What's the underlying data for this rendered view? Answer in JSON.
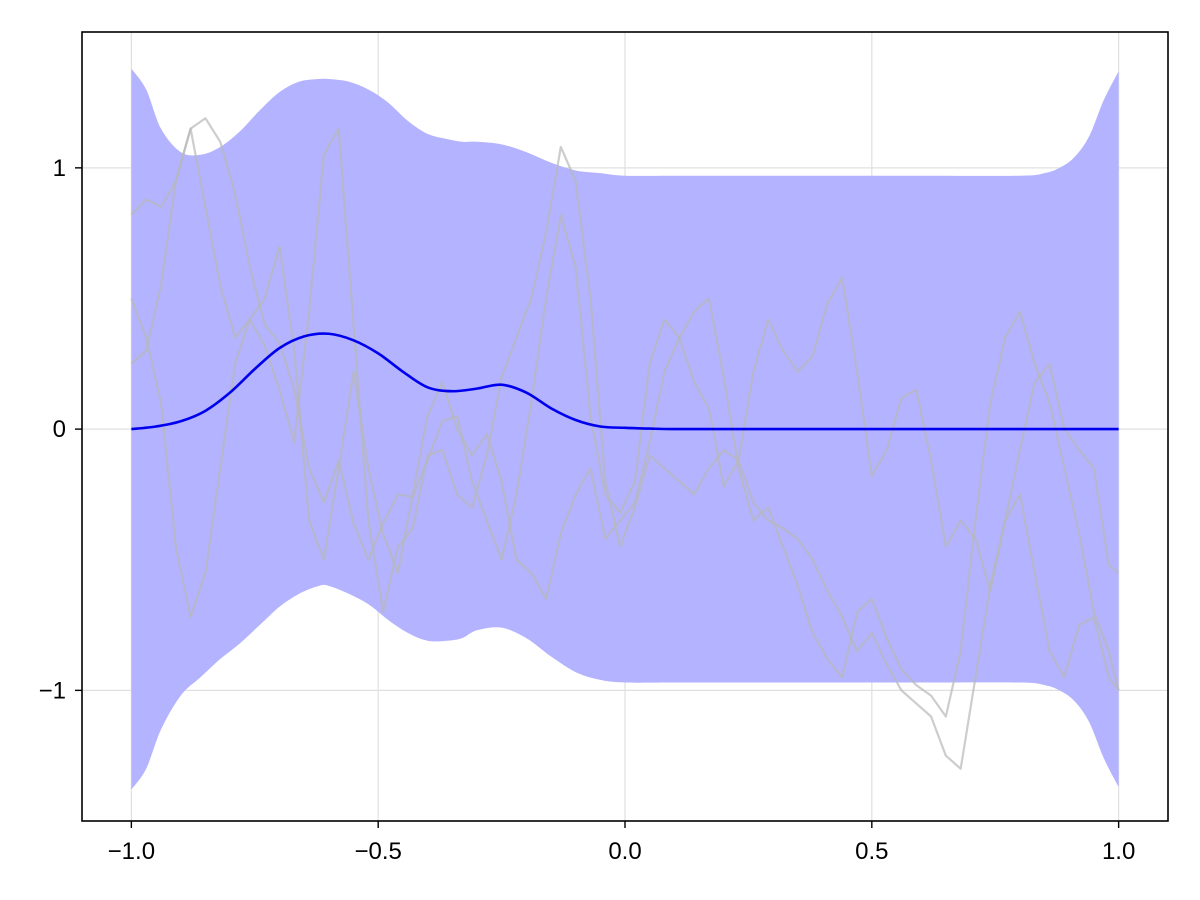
{
  "chart_data": {
    "type": "line",
    "title": "",
    "xlabel": "",
    "ylabel": "",
    "xlim": [
      -1.1,
      1.1
    ],
    "ylim": [
      -1.5,
      1.52
    ],
    "grid": true,
    "x_ticks": [
      {
        "value": -1.0,
        "label": "−1.0"
      },
      {
        "value": -0.5,
        "label": "−0.5"
      },
      {
        "value": 0.0,
        "label": "0.0"
      },
      {
        "value": 0.5,
        "label": "0.5"
      },
      {
        "value": 1.0,
        "label": "1.0"
      }
    ],
    "y_ticks": [
      {
        "value": -1,
        "label": "−1"
      },
      {
        "value": 0,
        "label": "0"
      },
      {
        "value": 1,
        "label": "1"
      }
    ],
    "colors": {
      "band": "#b3b3ff",
      "mean": "#0000ee",
      "samples": "#b8b8b8",
      "grid": "#e0e0e0",
      "frame": "#000000"
    },
    "band": {
      "x": [
        -1.0,
        -0.97,
        -0.94,
        -0.9,
        -0.86,
        -0.82,
        -0.78,
        -0.74,
        -0.7,
        -0.66,
        -0.62,
        -0.6,
        -0.56,
        -0.52,
        -0.48,
        -0.44,
        -0.4,
        -0.36,
        -0.33,
        -0.3,
        -0.25,
        -0.2,
        -0.15,
        -0.1,
        -0.05,
        0.0,
        0.1,
        0.2,
        0.4,
        0.6,
        0.8,
        0.85,
        0.88,
        0.91,
        0.94,
        0.97,
        1.0
      ],
      "upper": [
        1.38,
        1.3,
        1.15,
        1.06,
        1.05,
        1.08,
        1.14,
        1.22,
        1.29,
        1.33,
        1.34,
        1.34,
        1.33,
        1.3,
        1.25,
        1.18,
        1.13,
        1.11,
        1.1,
        1.1,
        1.09,
        1.06,
        1.02,
        0.99,
        0.98,
        0.97,
        0.97,
        0.97,
        0.97,
        0.97,
        0.97,
        0.98,
        1.0,
        1.04,
        1.12,
        1.26,
        1.37
      ],
      "lower": [
        -1.38,
        -1.3,
        -1.15,
        -1.02,
        -0.95,
        -0.88,
        -0.82,
        -0.75,
        -0.68,
        -0.63,
        -0.6,
        -0.6,
        -0.63,
        -0.67,
        -0.73,
        -0.78,
        -0.81,
        -0.81,
        -0.8,
        -0.77,
        -0.76,
        -0.8,
        -0.87,
        -0.93,
        -0.96,
        -0.97,
        -0.97,
        -0.97,
        -0.97,
        -0.97,
        -0.97,
        -0.98,
        -1.0,
        -1.04,
        -1.12,
        -1.26,
        -1.37
      ]
    },
    "mean": {
      "x": [
        -1.0,
        -0.95,
        -0.9,
        -0.85,
        -0.8,
        -0.75,
        -0.7,
        -0.65,
        -0.6,
        -0.55,
        -0.5,
        -0.45,
        -0.4,
        -0.35,
        -0.3,
        -0.25,
        -0.2,
        -0.15,
        -0.1,
        -0.05,
        0.0,
        0.05,
        0.1,
        0.2,
        0.4,
        0.6,
        0.8,
        1.0
      ],
      "y": [
        0.0,
        0.01,
        0.03,
        0.07,
        0.14,
        0.23,
        0.31,
        0.355,
        0.365,
        0.34,
        0.29,
        0.22,
        0.16,
        0.145,
        0.155,
        0.17,
        0.14,
        0.08,
        0.035,
        0.01,
        0.005,
        0.002,
        0.0,
        0.0,
        0.0,
        0.0,
        0.0,
        0.0
      ]
    },
    "samples": [
      {
        "x": [
          -1.0,
          -0.97,
          -0.94,
          -0.91,
          -0.88,
          -0.85,
          -0.82,
          -0.79,
          -0.76,
          -0.73,
          -0.7,
          -0.67,
          -0.64,
          -0.61,
          -0.58,
          -0.55,
          -0.52,
          -0.49,
          -0.46,
          -0.43,
          -0.4,
          -0.37,
          -0.34,
          -0.31,
          -0.28,
          -0.25,
          -0.22,
          -0.19,
          -0.16,
          -0.13,
          -0.1,
          -0.07,
          -0.04,
          -0.01,
          0.02,
          0.05,
          0.08,
          0.11,
          0.14,
          0.17,
          0.2,
          0.23,
          0.26,
          0.29,
          0.32,
          0.35,
          0.38,
          0.41,
          0.44,
          0.47,
          0.5,
          0.53,
          0.56,
          0.59,
          0.62,
          0.65,
          0.68,
          0.71,
          0.74,
          0.77,
          0.8,
          0.83,
          0.86,
          0.89,
          0.92,
          0.95,
          0.98,
          1.0
        ],
        "y": [
          0.82,
          0.88,
          0.85,
          0.95,
          1.15,
          1.19,
          1.1,
          0.9,
          0.62,
          0.4,
          0.33,
          0.15,
          -0.15,
          -0.28,
          -0.12,
          -0.36,
          -0.5,
          -0.36,
          -0.25,
          -0.26,
          -0.12,
          0.03,
          0.05,
          -0.2,
          -0.35,
          -0.5,
          -0.25,
          0.1,
          0.5,
          0.82,
          0.62,
          0.05,
          -0.25,
          -0.32,
          -0.2,
          0.25,
          0.42,
          0.35,
          0.18,
          0.08,
          -0.22,
          -0.12,
          0.22,
          0.42,
          0.3,
          0.22,
          0.28,
          0.48,
          0.58,
          0.22,
          -0.18,
          -0.08,
          0.12,
          0.15,
          -0.12,
          -0.45,
          -0.35,
          -0.42,
          -0.62,
          -0.35,
          -0.08,
          0.18,
          0.25,
          0.0,
          -0.08,
          -0.15,
          -0.52,
          -0.55
        ]
      },
      {
        "x": [
          -1.0,
          -0.97,
          -0.94,
          -0.91,
          -0.88,
          -0.85,
          -0.82,
          -0.79,
          -0.76,
          -0.73,
          -0.7,
          -0.67,
          -0.64,
          -0.61,
          -0.58,
          -0.55,
          -0.52,
          -0.49,
          -0.46,
          -0.43,
          -0.4,
          -0.37,
          -0.34,
          -0.31,
          -0.28,
          -0.25,
          -0.22,
          -0.19,
          -0.16,
          -0.13,
          -0.1,
          -0.07,
          -0.04,
          -0.01,
          0.02,
          0.05,
          0.08,
          0.11,
          0.14,
          0.17,
          0.2,
          0.23,
          0.26,
          0.29,
          0.32,
          0.35,
          0.38,
          0.41,
          0.44,
          0.47,
          0.5,
          0.53,
          0.56,
          0.59,
          0.62,
          0.65,
          0.68,
          0.71,
          0.74,
          0.77,
          0.8,
          0.83,
          0.86,
          0.89,
          0.92,
          0.95,
          0.98,
          1.0
        ],
        "y": [
          0.5,
          0.35,
          0.1,
          -0.45,
          -0.72,
          -0.55,
          -0.15,
          0.25,
          0.42,
          0.5,
          0.7,
          0.3,
          -0.35,
          -0.5,
          -0.15,
          0.22,
          -0.15,
          -0.4,
          -0.55,
          -0.25,
          0.05,
          0.18,
          0.0,
          -0.1,
          -0.02,
          -0.2,
          -0.5,
          -0.55,
          -0.65,
          -0.4,
          -0.25,
          -0.15,
          -0.42,
          -0.35,
          -0.28,
          -0.05,
          0.22,
          0.35,
          0.45,
          0.5,
          0.2,
          -0.15,
          -0.35,
          -0.3,
          -0.45,
          -0.6,
          -0.78,
          -0.88,
          -0.95,
          -0.7,
          -0.65,
          -0.8,
          -0.92,
          -0.98,
          -1.02,
          -1.1,
          -0.85,
          -0.35,
          0.1,
          0.35,
          0.45,
          0.25,
          0.1,
          -0.15,
          -0.4,
          -0.7,
          -0.85,
          -1.0
        ]
      },
      {
        "x": [
          -1.0,
          -0.97,
          -0.94,
          -0.91,
          -0.88,
          -0.85,
          -0.82,
          -0.79,
          -0.76,
          -0.73,
          -0.7,
          -0.67,
          -0.64,
          -0.61,
          -0.58,
          -0.55,
          -0.52,
          -0.49,
          -0.46,
          -0.43,
          -0.4,
          -0.37,
          -0.34,
          -0.31,
          -0.28,
          -0.25,
          -0.22,
          -0.19,
          -0.16,
          -0.13,
          -0.1,
          -0.07,
          -0.04,
          -0.01,
          0.02,
          0.05,
          0.08,
          0.11,
          0.14,
          0.17,
          0.2,
          0.23,
          0.26,
          0.29,
          0.32,
          0.35,
          0.38,
          0.41,
          0.44,
          0.47,
          0.5,
          0.53,
          0.56,
          0.59,
          0.62,
          0.65,
          0.68,
          0.71,
          0.74,
          0.77,
          0.8,
          0.83,
          0.86,
          0.89,
          0.92,
          0.95,
          0.98,
          1.0
        ],
        "y": [
          0.25,
          0.3,
          0.55,
          0.95,
          1.15,
          0.85,
          0.55,
          0.35,
          0.42,
          0.32,
          0.15,
          -0.05,
          0.45,
          1.05,
          1.15,
          0.4,
          -0.35,
          -0.7,
          -0.45,
          -0.38,
          -0.1,
          -0.08,
          -0.25,
          -0.3,
          -0.1,
          0.2,
          0.35,
          0.5,
          0.75,
          1.08,
          0.95,
          0.5,
          -0.2,
          -0.45,
          -0.3,
          -0.1,
          -0.15,
          -0.2,
          -0.25,
          -0.15,
          -0.08,
          -0.12,
          -0.28,
          -0.35,
          -0.38,
          -0.42,
          -0.5,
          -0.62,
          -0.72,
          -0.85,
          -0.78,
          -0.9,
          -1.0,
          -1.05,
          -1.1,
          -1.25,
          -1.3,
          -0.95,
          -0.6,
          -0.35,
          -0.25,
          -0.55,
          -0.85,
          -0.95,
          -0.75,
          -0.72,
          -0.95,
          -1.0
        ]
      }
    ]
  }
}
